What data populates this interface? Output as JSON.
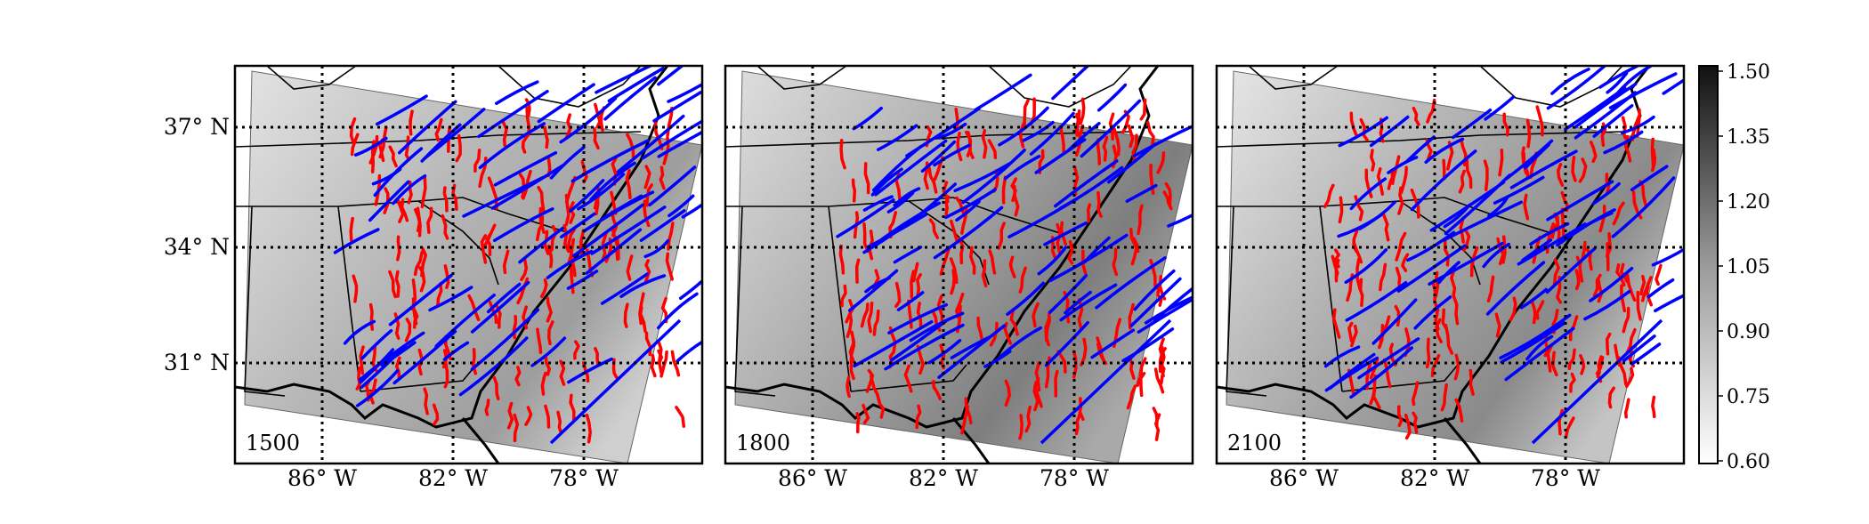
{
  "figure": {
    "panels": [
      {
        "label": "1500"
      },
      {
        "label": "1800"
      },
      {
        "label": "2100"
      }
    ],
    "lat_labels": [
      "37° N",
      "34° N",
      "31° N"
    ],
    "lon_labels": [
      "86° W",
      "82° W",
      "78° W"
    ],
    "colorbar": {
      "ticks": [
        "1.50",
        "1.35",
        "1.20",
        "1.05",
        "0.90",
        "0.75",
        "0.60"
      ],
      "range": [
        0.6,
        1.5
      ],
      "colormap": "greys"
    },
    "colors": {
      "red_lines": "#ff0000",
      "blue_lines": "#0000ff",
      "frame": "#000000"
    }
  }
}
